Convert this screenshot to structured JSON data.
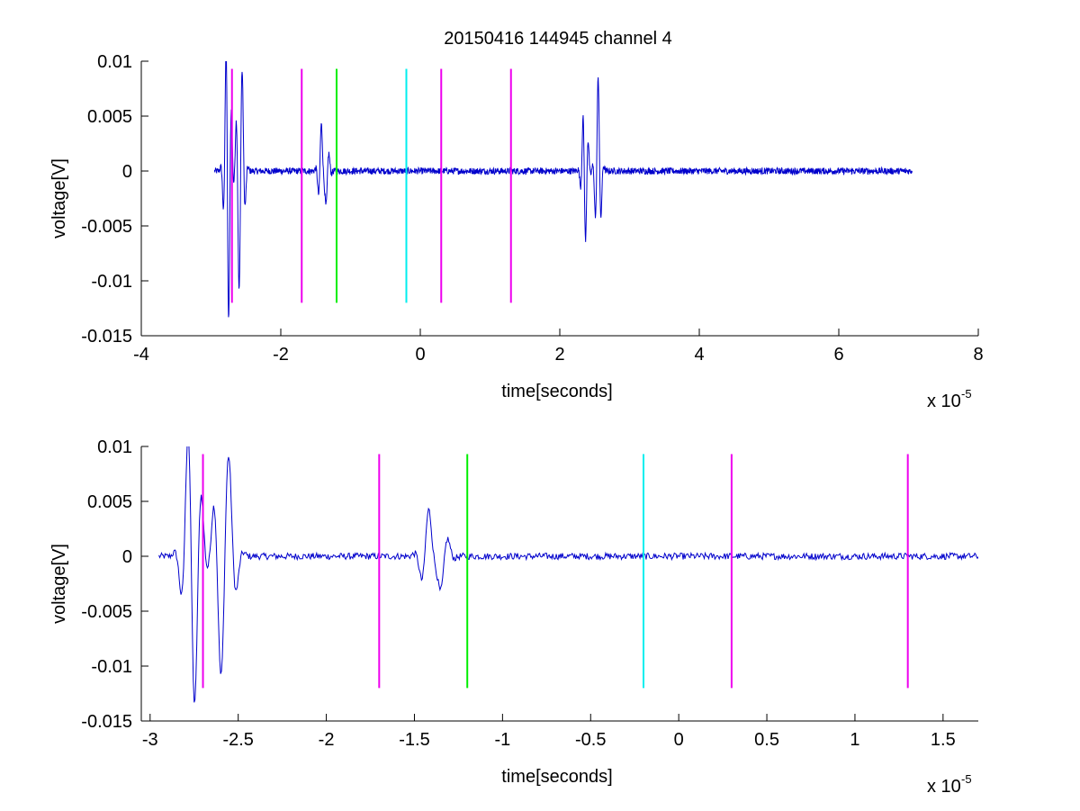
{
  "chart_data": {
    "title": "20150416 144945 channel 4",
    "type": "line",
    "colors": {
      "signal": "#0000cc",
      "marker_magenta": "#ee00ee",
      "marker_green": "#00ee00",
      "marker_cyan": "#00eeee",
      "axes": "#000000",
      "background": "#ffffff"
    },
    "markers": [
      {
        "x": -2.7,
        "color": "magenta"
      },
      {
        "x": -1.7,
        "color": "magenta"
      },
      {
        "x": -1.2,
        "color": "green"
      },
      {
        "x": -0.2,
        "color": "cyan"
      },
      {
        "x": 0.3,
        "color": "magenta"
      },
      {
        "x": 1.3,
        "color": "magenta"
      }
    ],
    "marker_y_range": [
      -0.012,
      0.0093
    ],
    "signal": {
      "x_range": [
        -2.95,
        7.05
      ],
      "noise_amplitude": 0.0003,
      "bursts": [
        {
          "x": -2.78,
          "peak": 0.0065
        },
        {
          "x": -2.75,
          "peak": -0.011
        },
        {
          "x": -2.6,
          "peak": -0.0088
        },
        {
          "x": -2.55,
          "peak": 0.0057
        },
        {
          "x": -1.42,
          "peak": 0.0043
        },
        {
          "x": -1.35,
          "peak": -0.0032
        },
        {
          "x": 2.35,
          "peak": 0.0075
        },
        {
          "x": 2.36,
          "peak": -0.0101
        },
        {
          "x": 2.55,
          "peak": 0.0085
        }
      ]
    },
    "panels": [
      {
        "xlabel": "time[seconds]",
        "ylabel": "voltage[V]",
        "exponent_base": "x 10",
        "exponent_power": "-5",
        "xlim": [
          -4,
          8
        ],
        "ylim": [
          -0.015,
          0.01
        ],
        "xticks": [
          "-4",
          "-2",
          "0",
          "2",
          "4",
          "6",
          "8"
        ],
        "yticks": [
          "0.01",
          "0.005",
          "0",
          "-0.005",
          "-0.01",
          "-0.015"
        ]
      },
      {
        "xlabel": "time[seconds]",
        "ylabel": "voltage[V]",
        "exponent_base": "x 10",
        "exponent_power": "-5",
        "xlim": [
          -3.05,
          1.7
        ],
        "ylim": [
          -0.015,
          0.01
        ],
        "xticks": [
          "-3",
          "-2.5",
          "-2",
          "-1.5",
          "-1",
          "-0.5",
          "0",
          "0.5",
          "1",
          "1.5"
        ],
        "yticks": [
          "0.01",
          "0.005",
          "0",
          "-0.005",
          "-0.01",
          "-0.015"
        ]
      }
    ]
  }
}
